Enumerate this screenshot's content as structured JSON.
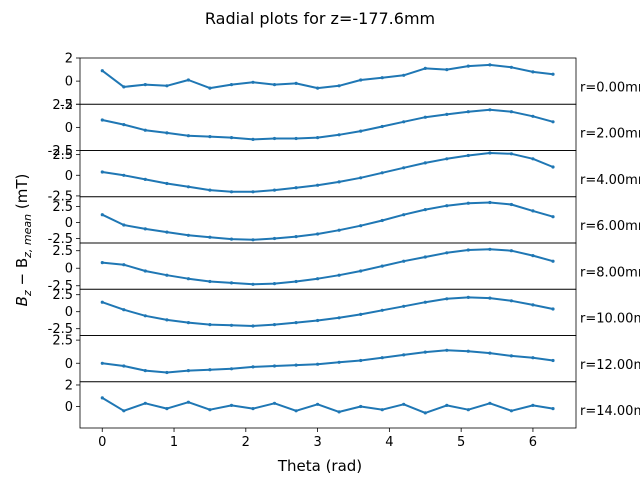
{
  "chart_data": {
    "type": "line",
    "title": "Radial plots for z=-177.6mm",
    "xlabel": "Theta (rad)",
    "ylabel": "B_z − B_z,mean (mT)",
    "ylabel_main": "B",
    "ylabel_sub1": "z",
    "ylabel_minus": " − B",
    "ylabel_sub2": "z, mean",
    "ylabel_unit": " (mT)",
    "xlim": [
      -0.31,
      6.6
    ],
    "xticks": [
      0,
      1,
      2,
      3,
      4,
      5,
      6
    ],
    "line_color": "#1f77b4",
    "grid": false,
    "panels": [
      {
        "label": "r=0.00mm",
        "ylim": [
          -2.0,
          2.0
        ],
        "yticks": [
          -2,
          0,
          2
        ],
        "x": [
          0.0,
          0.3,
          0.6,
          0.9,
          1.2,
          1.5,
          1.8,
          2.1,
          2.4,
          2.7,
          3.0,
          3.3,
          3.6,
          3.9,
          4.2,
          4.5,
          4.8,
          5.1,
          5.4,
          5.7,
          6.0,
          6.28
        ],
        "y": [
          0.9,
          -0.5,
          -0.3,
          -0.4,
          0.1,
          -0.6,
          -0.3,
          -0.1,
          -0.3,
          -0.2,
          -0.6,
          -0.4,
          0.1,
          0.3,
          0.5,
          1.1,
          1.0,
          1.3,
          1.4,
          1.2,
          0.8,
          0.6
        ]
      },
      {
        "label": "r=2.00mm",
        "ylim": [
          -2.5,
          2.5
        ],
        "yticks": [
          -2.5,
          0.0,
          2.5
        ],
        "x": [
          0.0,
          0.3,
          0.6,
          0.9,
          1.2,
          1.5,
          1.8,
          2.1,
          2.4,
          2.7,
          3.0,
          3.3,
          3.6,
          3.9,
          4.2,
          4.5,
          4.8,
          5.1,
          5.4,
          5.7,
          6.0,
          6.28
        ],
        "y": [
          0.8,
          0.3,
          -0.3,
          -0.6,
          -0.9,
          -1.0,
          -1.1,
          -1.3,
          -1.2,
          -1.2,
          -1.1,
          -0.8,
          -0.4,
          0.1,
          0.6,
          1.1,
          1.4,
          1.7,
          1.9,
          1.7,
          1.2,
          0.6
        ]
      },
      {
        "label": "r=4.00mm",
        "ylim": [
          -2.6,
          3.0
        ],
        "yticks": [
          -2.5,
          0.0,
          2.5
        ],
        "x": [
          0.0,
          0.3,
          0.6,
          0.9,
          1.2,
          1.5,
          1.8,
          2.1,
          2.4,
          2.7,
          3.0,
          3.3,
          3.6,
          3.9,
          4.2,
          4.5,
          4.8,
          5.1,
          5.4,
          5.7,
          6.0,
          6.28
        ],
        "y": [
          0.4,
          0.0,
          -0.5,
          -1.0,
          -1.4,
          -1.8,
          -2.0,
          -2.0,
          -1.8,
          -1.5,
          -1.2,
          -0.8,
          -0.3,
          0.3,
          0.9,
          1.5,
          2.0,
          2.4,
          2.7,
          2.6,
          2.0,
          1.0
        ]
      },
      {
        "label": "r=6.00mm",
        "ylim": [
          -3.2,
          4.0
        ],
        "yticks": [
          -2.5,
          0.0,
          2.5
        ],
        "x": [
          0.0,
          0.3,
          0.6,
          0.9,
          1.2,
          1.5,
          1.8,
          2.1,
          2.4,
          2.7,
          3.0,
          3.3,
          3.6,
          3.9,
          4.2,
          4.5,
          4.8,
          5.1,
          5.4,
          5.7,
          6.0,
          6.28
        ],
        "y": [
          1.2,
          -0.4,
          -1.0,
          -1.5,
          -2.0,
          -2.3,
          -2.6,
          -2.7,
          -2.5,
          -2.2,
          -1.8,
          -1.2,
          -0.5,
          0.3,
          1.2,
          2.0,
          2.6,
          3.0,
          3.1,
          2.8,
          1.8,
          0.9
        ]
      },
      {
        "label": "r=8.00mm",
        "ylim": [
          -3.0,
          3.6
        ],
        "yticks": [
          -2.5,
          0.0,
          2.5
        ],
        "x": [
          0.0,
          0.3,
          0.6,
          0.9,
          1.2,
          1.5,
          1.8,
          2.1,
          2.4,
          2.7,
          3.0,
          3.3,
          3.6,
          3.9,
          4.2,
          4.5,
          4.8,
          5.1,
          5.4,
          5.7,
          6.0,
          6.28
        ],
        "y": [
          0.8,
          0.5,
          -0.4,
          -1.0,
          -1.5,
          -1.9,
          -2.1,
          -2.3,
          -2.2,
          -1.9,
          -1.5,
          -1.0,
          -0.4,
          0.3,
          1.0,
          1.6,
          2.2,
          2.6,
          2.7,
          2.5,
          1.8,
          1.0
        ]
      },
      {
        "label": "r=10.00mm",
        "ylim": [
          -3.5,
          3.3
        ],
        "yticks": [
          -2.5,
          0.0,
          2.5
        ],
        "x": [
          0.0,
          0.3,
          0.6,
          0.9,
          1.2,
          1.5,
          1.8,
          2.1,
          2.4,
          2.7,
          3.0,
          3.3,
          3.6,
          3.9,
          4.2,
          4.5,
          4.8,
          5.1,
          5.4,
          5.7,
          6.0,
          6.28
        ],
        "y": [
          1.4,
          0.3,
          -0.6,
          -1.2,
          -1.6,
          -1.9,
          -2.0,
          -2.1,
          -1.9,
          -1.6,
          -1.3,
          -0.9,
          -0.4,
          0.2,
          0.8,
          1.4,
          1.9,
          2.1,
          2.0,
          1.6,
          1.0,
          0.4
        ]
      },
      {
        "label": "r=12.00mm",
        "ylim": [
          -2.0,
          3.0
        ],
        "yticks": [
          0.0,
          2.5
        ],
        "x": [
          0.0,
          0.3,
          0.6,
          0.9,
          1.2,
          1.5,
          1.8,
          2.1,
          2.4,
          2.7,
          3.0,
          3.3,
          3.6,
          3.9,
          4.2,
          4.5,
          4.8,
          5.1,
          5.4,
          5.7,
          6.0,
          6.28
        ],
        "y": [
          0.0,
          -0.3,
          -0.8,
          -1.0,
          -0.8,
          -0.7,
          -0.6,
          -0.4,
          -0.3,
          -0.2,
          -0.1,
          0.1,
          0.3,
          0.6,
          0.9,
          1.2,
          1.4,
          1.3,
          1.1,
          0.8,
          0.6,
          0.3
        ]
      },
      {
        "label": "r=14.00mm",
        "ylim": [
          -2.0,
          2.3
        ],
        "yticks": [
          0,
          2
        ],
        "x": [
          0.0,
          0.3,
          0.6,
          0.9,
          1.2,
          1.5,
          1.8,
          2.1,
          2.4,
          2.7,
          3.0,
          3.3,
          3.6,
          3.9,
          4.2,
          4.5,
          4.8,
          5.1,
          5.4,
          5.7,
          6.0,
          6.28
        ],
        "y": [
          0.8,
          -0.4,
          0.3,
          -0.2,
          0.4,
          -0.3,
          0.1,
          -0.2,
          0.3,
          -0.4,
          0.2,
          -0.5,
          0.0,
          -0.3,
          0.2,
          -0.6,
          0.1,
          -0.3,
          0.3,
          -0.4,
          0.1,
          -0.2
        ]
      }
    ]
  }
}
